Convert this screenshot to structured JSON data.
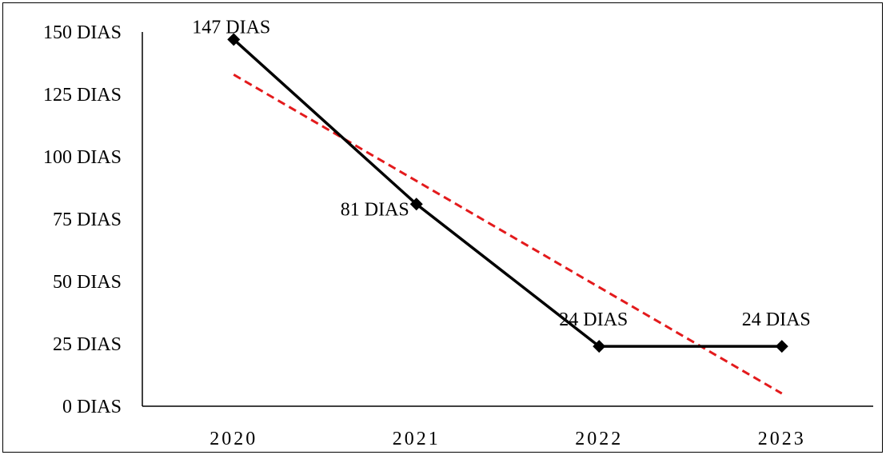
{
  "chart_data": {
    "type": "line",
    "categories": [
      "2020",
      "2021",
      "2022",
      "2023"
    ],
    "series": [
      {
        "values": [
          147,
          81,
          24,
          24
        ],
        "data_labels": [
          "147 DIAS",
          "81 DIAS",
          "24 DIAS",
          "24 DIAS"
        ],
        "color": "#000000",
        "marker": "diamond"
      }
    ],
    "trendline": {
      "type": "linear",
      "color": "#e31a1c",
      "style": "dashed"
    },
    "y_ticks": [
      "0 DIAS",
      "25 DIAS",
      "50 DIAS",
      "75 DIAS",
      "100 DIAS",
      "125 DIAS",
      "150 DIAS"
    ],
    "ylim": [
      0,
      150
    ],
    "grid": false,
    "legend": "none"
  }
}
